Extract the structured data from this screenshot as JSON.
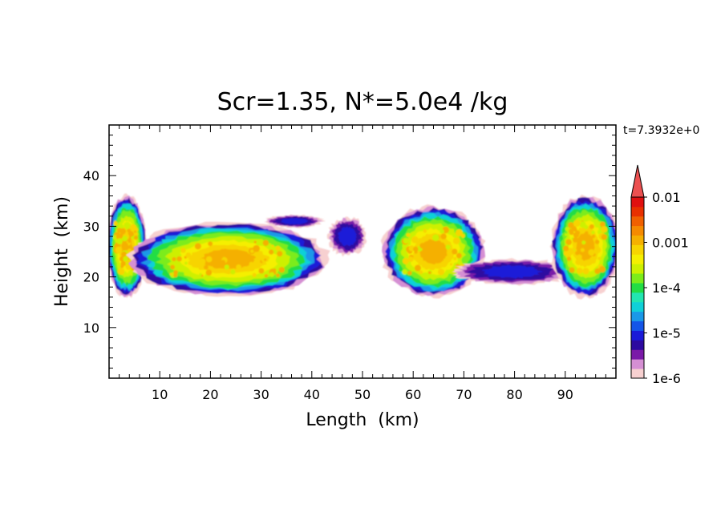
{
  "chart_data": {
    "type": "heatmap",
    "title": "Scr=1.35, N*=5.0e4 /kg",
    "xlabel": "Length  (km)",
    "ylabel": "Height  (km)",
    "time_label": "t=7.3932e+0",
    "xlim": [
      0,
      100
    ],
    "ylim": [
      0,
      50
    ],
    "x_ticks": [
      10,
      20,
      30,
      40,
      50,
      60,
      70,
      80,
      90
    ],
    "y_ticks": [
      10,
      20,
      30,
      40
    ],
    "grid": false,
    "colorbar": {
      "scale": "log",
      "range": [
        1e-06,
        0.01
      ],
      "tick_labels": [
        "0.01",
        "0.001",
        "1e-4",
        "1e-5",
        "1e-6"
      ],
      "extend": "max",
      "colors": [
        "#f7d0d0",
        "#d58fd3",
        "#7a1aa8",
        "#2d0aa0",
        "#1a1ad8",
        "#1455e8",
        "#1a98e8",
        "#10d0d8",
        "#22e6b0",
        "#22dd44",
        "#7cec1a",
        "#cdf000",
        "#f5ef00",
        "#f7d400",
        "#f5b000",
        "#f58a00",
        "#f06000",
        "#e83000",
        "#e01010",
        "#ec5050"
      ]
    },
    "regions": [
      {
        "name": "cloud-left-edge",
        "x_range": [
          0,
          7
        ],
        "y_range": [
          17,
          35
        ],
        "peak": 0.001
      },
      {
        "name": "cloud-main-left",
        "x_range": [
          6,
          41
        ],
        "y_range": [
          17,
          30
        ],
        "peak": 0.001
      },
      {
        "name": "cloud-center-right",
        "x_range": [
          55,
          73
        ],
        "y_range": [
          17,
          33
        ],
        "peak": 0.001
      },
      {
        "name": "cloud-thin-band",
        "x_range": [
          70,
          89
        ],
        "y_range": [
          19,
          23
        ],
        "peak": 1e-05
      },
      {
        "name": "cloud-right-edge",
        "x_range": [
          88,
          100
        ],
        "y_range": [
          17,
          35
        ],
        "peak": 0.001
      },
      {
        "name": "ice-streak-upper",
        "x_range": [
          32,
          41
        ],
        "y_range": [
          30,
          32
        ],
        "peak": 1e-05
      },
      {
        "name": "ice-patch-center",
        "x_range": [
          44,
          50
        ],
        "y_range": [
          25,
          31
        ],
        "peak": 1e-05
      }
    ]
  }
}
